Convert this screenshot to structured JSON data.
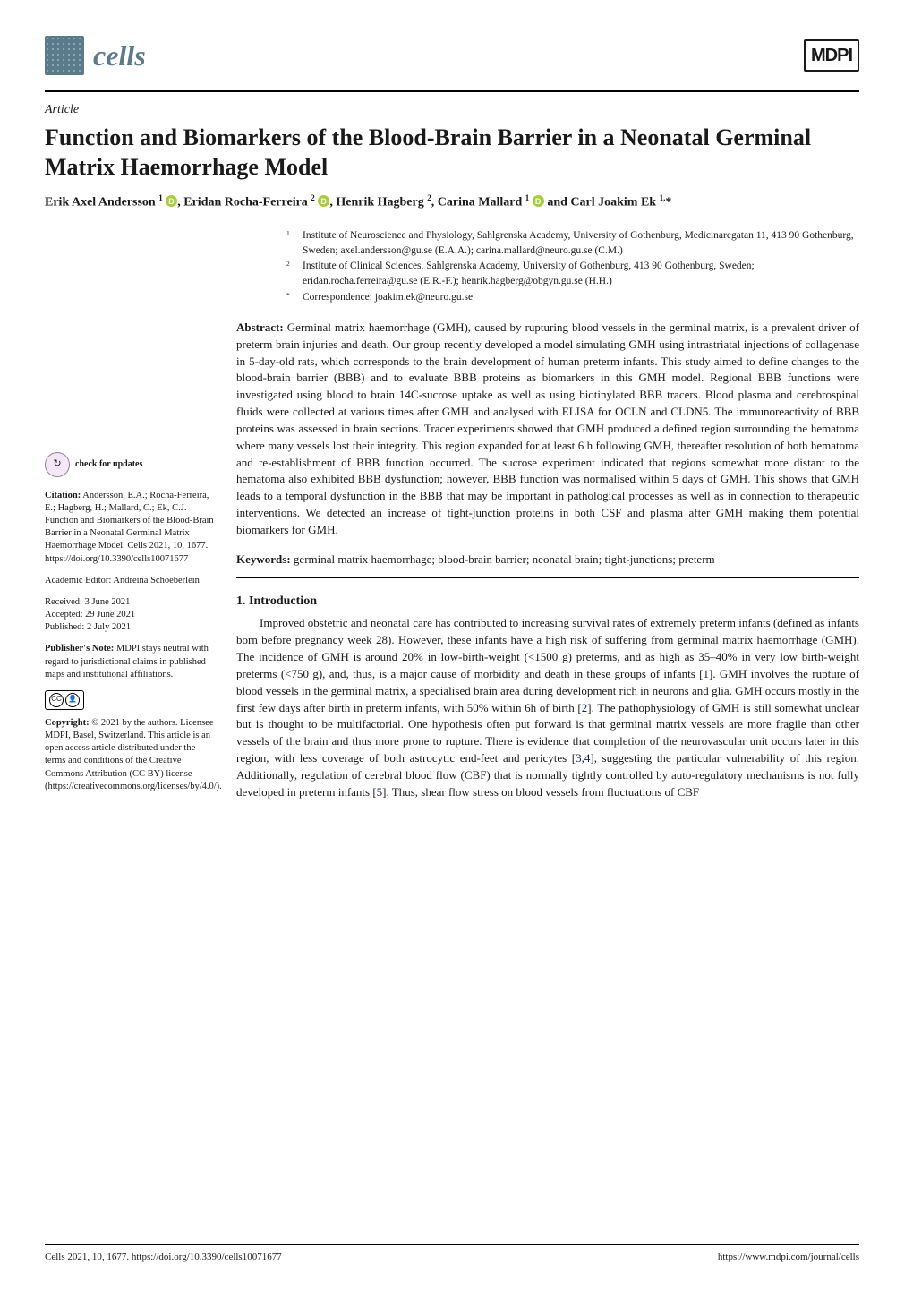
{
  "journal": {
    "name": "cells"
  },
  "publisher": "MDPI",
  "article_type": "Article",
  "title": "Function and Biomarkers of the Blood-Brain Barrier in a Neonatal Germinal Matrix Haemorrhage Model",
  "authors_html": "Erik Axel Andersson <span class='sup'>1</span> <span class='orcid' data-name='orcid-icon' data-interactable='false'></span>, Eridan Rocha-Ferreira <span class='sup'>2</span> <span class='orcid' data-name='orcid-icon' data-interactable='false'></span>, Henrik Hagberg <span class='sup'>2</span>, Carina Mallard <span class='sup'>1</span> <span class='orcid' data-name='orcid-icon' data-interactable='false'></span> and Carl Joakim Ek <span class='sup'>1,</span>*",
  "affiliations": [
    {
      "num": "1",
      "text": "Institute of Neuroscience and Physiology, Sahlgrenska Academy, University of Gothenburg, Medicinaregatan 11, 413 90 Gothenburg, Sweden; axel.andersson@gu.se (E.A.A.); carina.mallard@neuro.gu.se (C.M.)"
    },
    {
      "num": "2",
      "text": "Institute of Clinical Sciences, Sahlgrenska Academy, University of Gothenburg, 413 90 Gothenburg, Sweden; eridan.rocha.ferreira@gu.se (E.R.-F.); henrik.hagberg@obgyn.gu.se (H.H.)"
    },
    {
      "num": "*",
      "text": "Correspondence: joakim.ek@neuro.gu.se"
    }
  ],
  "abstract_label": "Abstract:",
  "abstract": "Germinal matrix haemorrhage (GMH), caused by rupturing blood vessels in the germinal matrix, is a prevalent driver of preterm brain injuries and death. Our group recently developed a model simulating GMH using intrastriatal injections of collagenase in 5-day-old rats, which corresponds to the brain development of human preterm infants. This study aimed to define changes to the blood-brain barrier (BBB) and to evaluate BBB proteins as biomarkers in this GMH model. Regional BBB functions were investigated using blood to brain 14C-sucrose uptake as well as using biotinylated BBB tracers. Blood plasma and cerebrospinal fluids were collected at various times after GMH and analysed with ELISA for OCLN and CLDN5. The immunoreactivity of BBB proteins was assessed in brain sections. Tracer experiments showed that GMH produced a defined region surrounding the hematoma where many vessels lost their integrity. This region expanded for at least 6 h following GMH, thereafter resolution of both hematoma and re-establishment of BBB function occurred. The sucrose experiment indicated that regions somewhat more distant to the hematoma also exhibited BBB dysfunction; however, BBB function was normalised within 5 days of GMH. This shows that GMH leads to a temporal dysfunction in the BBB that may be important in pathological processes as well as in connection to therapeutic interventions. We detected an increase of tight-junction proteins in both CSF and plasma after GMH making them potential biomarkers for GMH.",
  "keywords_label": "Keywords:",
  "keywords": "germinal matrix haemorrhage; blood-brain barrier; neonatal brain; tight-junctions; preterm",
  "section1_head": "1. Introduction",
  "section1_body": "Improved obstetric and neonatal care has contributed to increasing survival rates of extremely preterm infants (defined as infants born before pregnancy week 28). However, these infants have a high risk of suffering from germinal matrix haemorrhage (GMH). The incidence of GMH is around 20% in low-birth-weight (<1500 g) preterms, and as high as 35–40% in very low birth-weight preterms (<750 g), and, thus, is a major cause of morbidity and death in these groups of infants [1]. GMH involves the rupture of blood vessels in the germinal matrix, a specialised brain area during development rich in neurons and glia. GMH occurs mostly in the first few days after birth in preterm infants, with 50% within 6h of birth [2]. The pathophysiology of GMH is still somewhat unclear but is thought to be multifactorial. One hypothesis often put forward is that germinal matrix vessels are more fragile than other vessels of the brain and thus more prone to rupture. There is evidence that completion of the neurovascular unit occurs later in this region, with less coverage of both astrocytic end-feet and pericytes [3,4], suggesting the particular vulnerability of this region. Additionally, regulation of cerebral blood flow (CBF) that is normally tightly controlled by auto-regulatory mechanisms is not fully developed in preterm infants [5]. Thus, shear flow stress on blood vessels from fluctuations of CBF",
  "ref_links": [
    "1",
    "2",
    "3",
    "4",
    "5"
  ],
  "sidebar": {
    "check_updates": "check for updates",
    "citation_label": "Citation:",
    "citation": "Andersson, E.A.; Rocha-Ferreira, E.; Hagberg, H.; Mallard, C.; Ek, C.J. Function and Biomarkers of the Blood-Brain Barrier in a Neonatal Germinal Matrix Haemorrhage Model. Cells 2021, 10, 1677. https://doi.org/10.3390/cells10071677",
    "editor": "Academic Editor: Andreina Schoeberlein",
    "received": "Received: 3 June 2021",
    "accepted": "Accepted: 29 June 2021",
    "published": "Published: 2 July 2021",
    "publishers_note_label": "Publisher's Note:",
    "publishers_note": "MDPI stays neutral with regard to jurisdictional claims in published maps and institutional affiliations.",
    "copyright_label": "Copyright:",
    "copyright": "© 2021 by the authors. Licensee MDPI, Basel, Switzerland. This article is an open access article distributed under the terms and conditions of the Creative Commons Attribution (CC BY) license (https://creativecommons.org/licenses/by/4.0/)."
  },
  "footer": {
    "left": "Cells 2021, 10, 1677. https://doi.org/10.3390/cells10071677",
    "right": "https://www.mdpi.com/journal/cells"
  }
}
